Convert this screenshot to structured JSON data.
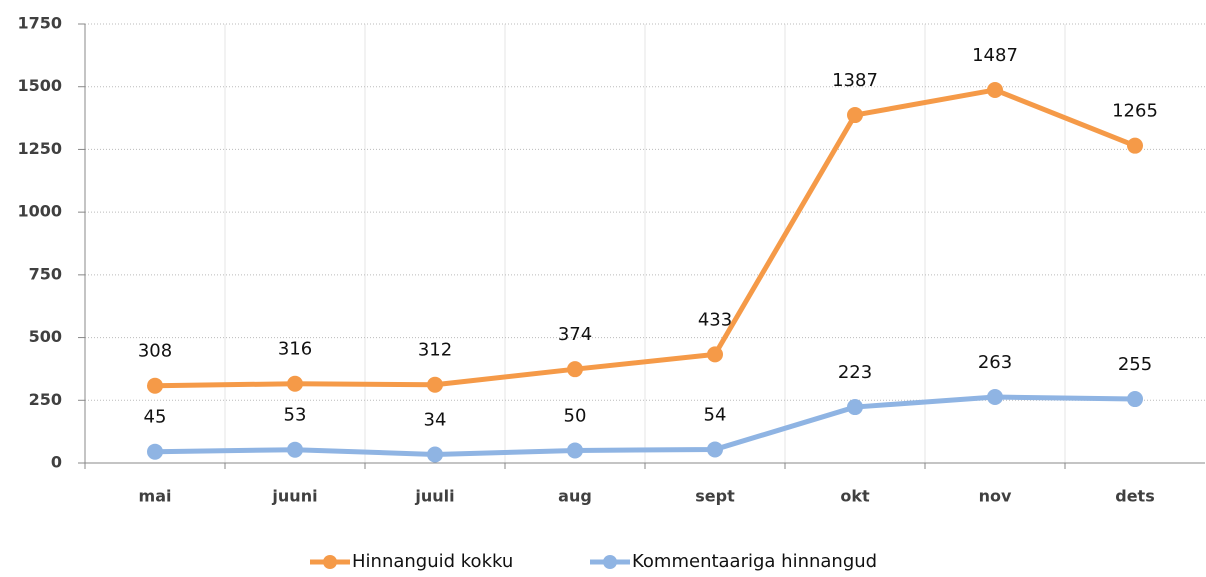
{
  "chart_data": {
    "type": "line",
    "categories": [
      "mai",
      "juuni",
      "juuli",
      "aug",
      "sept",
      "okt",
      "nov",
      "dets"
    ],
    "series": [
      {
        "name": "Hinnanguid kokku",
        "color": "#f59a48",
        "values": [
          308,
          316,
          312,
          374,
          433,
          1387,
          1487,
          1265
        ]
      },
      {
        "name": "Kommentaariga hinnangud",
        "color": "#8fb4e3",
        "values": [
          45,
          53,
          34,
          50,
          54,
          223,
          263,
          255
        ]
      }
    ],
    "ylim": [
      0,
      1750
    ],
    "yticks": [
      0,
      250,
      500,
      750,
      1000,
      1250,
      1500,
      1750
    ],
    "grid": true,
    "legend": "bottom"
  }
}
